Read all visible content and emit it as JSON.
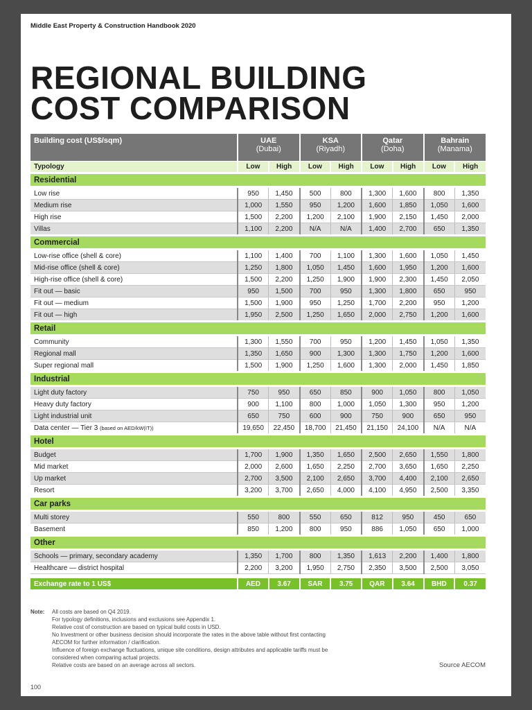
{
  "running_header": "Middle East Property & Construction Handbook 2020",
  "title_line1": "REGIONAL BUILDING",
  "title_line2": "COST COMPARISON",
  "table": {
    "header_label": "Building cost (US$/sqm)",
    "typology_label": "Typology",
    "countries": [
      {
        "name": "UAE",
        "city": "(Dubai)"
      },
      {
        "name": "KSA",
        "city": "(Riyadh)"
      },
      {
        "name": "Qatar",
        "city": "(Doha)"
      },
      {
        "name": "Bahrain",
        "city": "(Manama)"
      }
    ],
    "low_label": "Low",
    "high_label": "High",
    "sections": [
      {
        "name": "Residential",
        "rows": [
          {
            "label": "Low rise",
            "values": [
              "950",
              "1,450",
              "500",
              "800",
              "1,300",
              "1,600",
              "800",
              "1,350"
            ]
          },
          {
            "label": "Medium rise",
            "values": [
              "1,000",
              "1,550",
              "950",
              "1,200",
              "1,600",
              "1,850",
              "1,050",
              "1,600"
            ]
          },
          {
            "label": "High rise",
            "values": [
              "1,500",
              "2,200",
              "1,200",
              "2,100",
              "1,900",
              "2,150",
              "1,450",
              "2,000"
            ]
          },
          {
            "label": "Villas",
            "values": [
              "1,100",
              "2,200",
              "N/A",
              "N/A",
              "1,400",
              "2,700",
              "650",
              "1,350"
            ]
          }
        ]
      },
      {
        "name": "Commercial",
        "rows": [
          {
            "label": "Low-rise office (shell & core)",
            "values": [
              "1,100",
              "1,400",
              "700",
              "1,100",
              "1,300",
              "1,600",
              "1,050",
              "1,450"
            ]
          },
          {
            "label": "Mid-rise office (shell & core)",
            "values": [
              "1,250",
              "1,800",
              "1,050",
              "1,450",
              "1,600",
              "1,950",
              "1,200",
              "1,600"
            ]
          },
          {
            "label": "High-rise office (shell & core)",
            "values": [
              "1,500",
              "2,200",
              "1,250",
              "1,900",
              "1,900",
              "2,300",
              "1,450",
              "2,050"
            ]
          },
          {
            "label": "Fit out — basic",
            "values": [
              "950",
              "1,500",
              "700",
              "950",
              "1,300",
              "1,800",
              "650",
              "950"
            ]
          },
          {
            "label": "Fit out — medium",
            "values": [
              "1,500",
              "1,900",
              "950",
              "1,250",
              "1,700",
              "2,200",
              "950",
              "1,200"
            ]
          },
          {
            "label": "Fit out — high",
            "values": [
              "1,950",
              "2,500",
              "1,250",
              "1,650",
              "2,000",
              "2,750",
              "1,200",
              "1,600"
            ]
          }
        ]
      },
      {
        "name": "Retail",
        "rows": [
          {
            "label": "Community",
            "values": [
              "1,300",
              "1,550",
              "700",
              "950",
              "1,200",
              "1,450",
              "1,050",
              "1,350"
            ]
          },
          {
            "label": "Regional mall",
            "values": [
              "1,350",
              "1,650",
              "900",
              "1,300",
              "1,300",
              "1,750",
              "1,200",
              "1,600"
            ]
          },
          {
            "label": "Super regional mall",
            "values": [
              "1,500",
              "1,900",
              "1,250",
              "1,600",
              "1,300",
              "2,000",
              "1,450",
              "1,850"
            ]
          }
        ]
      },
      {
        "name": "Industrial",
        "rows": [
          {
            "label": "Light duty factory",
            "values": [
              "750",
              "950",
              "650",
              "850",
              "900",
              "1,050",
              "800",
              "1,050"
            ]
          },
          {
            "label": "Heavy duty factory",
            "values": [
              "900",
              "1,100",
              "800",
              "1,000",
              "1,050",
              "1,300",
              "950",
              "1,200"
            ]
          },
          {
            "label": "Light industrial unit",
            "values": [
              "650",
              "750",
              "600",
              "900",
              "750",
              "900",
              "650",
              "950"
            ]
          },
          {
            "label": "Data center — Tier 3",
            "note": "(based on AED/kW(IT))",
            "values": [
              "19,650",
              "22,450",
              "18,700",
              "21,450",
              "21,150",
              "24,100",
              "N/A",
              "N/A"
            ]
          }
        ]
      },
      {
        "name": "Hotel",
        "rows": [
          {
            "label": "Budget",
            "values": [
              "1,700",
              "1,900",
              "1,350",
              "1,650",
              "2,500",
              "2,650",
              "1,550",
              "1,800"
            ]
          },
          {
            "label": "Mid market",
            "values": [
              "2,000",
              "2,600",
              "1,650",
              "2,250",
              "2,700",
              "3,650",
              "1,650",
              "2,250"
            ]
          },
          {
            "label": "Up market",
            "values": [
              "2,700",
              "3,500",
              "2,100",
              "2,650",
              "3,700",
              "4,400",
              "2,100",
              "2,650"
            ]
          },
          {
            "label": "Resort",
            "values": [
              "3,200",
              "3,700",
              "2,650",
              "4,000",
              "4,100",
              "4,950",
              "2,500",
              "3,350"
            ]
          }
        ]
      },
      {
        "name": "Car parks",
        "rows": [
          {
            "label": "Multi storey",
            "values": [
              "550",
              "800",
              "550",
              "650",
              "812",
              "950",
              "450",
              "650"
            ]
          },
          {
            "label": "Basement",
            "values": [
              "850",
              "1,200",
              "800",
              "950",
              "886",
              "1,050",
              "650",
              "1,000"
            ]
          }
        ]
      },
      {
        "name": "Other",
        "rows": [
          {
            "label": "Schools — primary, secondary academy",
            "values": [
              "1,350",
              "1,700",
              "800",
              "1,350",
              "1,613",
              "2,200",
              "1,400",
              "1,800"
            ]
          },
          {
            "label": "Healthcare — district hospital",
            "values": [
              "2,200",
              "3,200",
              "1,950",
              "2,750",
              "2,350",
              "3,500",
              "2,500",
              "3,050"
            ]
          }
        ]
      }
    ],
    "exchange": {
      "label": "Exchange rate to 1 US$",
      "values": [
        "AED",
        "3.67",
        "SAR",
        "3.75",
        "QAR",
        "3.64",
        "BHD",
        "0.37"
      ]
    }
  },
  "note_label": "Note:",
  "notes": [
    "All costs are based on Q4 2019.",
    "For typology definitions, inclusions and exclusions see Appendix 1.",
    "Relative cost of construction are based on typical build costs in USD.",
    "No Investment or other business decision should incorporate the rates in the above table without first contacting",
    "AECOM for further information / clarification.",
    "Influence of foreign exchange fluctuations, unique site conditions, design attributes and applicable tariffs must be",
    "considered when comparing actual projects.",
    "Relative costs are based on an average across all sectors."
  ],
  "source": "Source AECOM",
  "page_number": "100",
  "colors": {
    "header_grey": "#767676",
    "section_green": "#a5da5e",
    "exchange_green": "#79c12b",
    "typology_green": "#e4f3cc"
  }
}
